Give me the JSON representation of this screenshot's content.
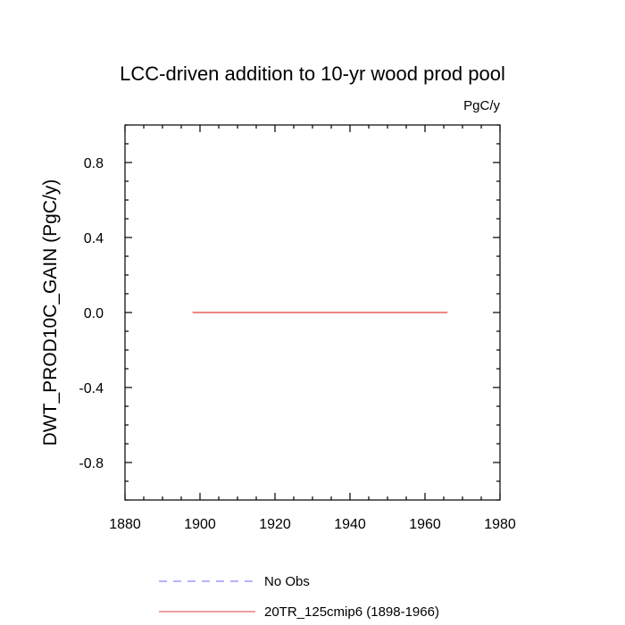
{
  "chart_data": {
    "type": "line",
    "title": "LCC-driven addition to 10-yr wood prod pool",
    "units_label": "PgC/y",
    "ylabel": "DWT_PROD10C_GAIN  (PgC/y)",
    "xlabel": "",
    "xlim": [
      1880,
      1980
    ],
    "ylim": [
      -1.0,
      1.0
    ],
    "x_major_ticks": [
      1880,
      1900,
      1920,
      1940,
      1960,
      1980
    ],
    "x_minor_step": 5,
    "y_major_ticks": [
      -0.8,
      -0.4,
      0.0,
      0.4,
      0.8
    ],
    "y_tick_labels": [
      "-0.8",
      "-0.4",
      "0.0",
      "0.4",
      "0.8"
    ],
    "y_minor_step": 0.1,
    "grid": false,
    "legend_position": "bottom",
    "series": [
      {
        "name": "No Obs",
        "color": "#6a6aff",
        "dash": "dashed",
        "x": [],
        "y": []
      },
      {
        "name": "20TR_125cmip6 (1898-1966)",
        "color": "#e03c3c",
        "dash": "solid",
        "x": [
          1898,
          1966
        ],
        "y": [
          0.0,
          0.0
        ]
      }
    ]
  }
}
